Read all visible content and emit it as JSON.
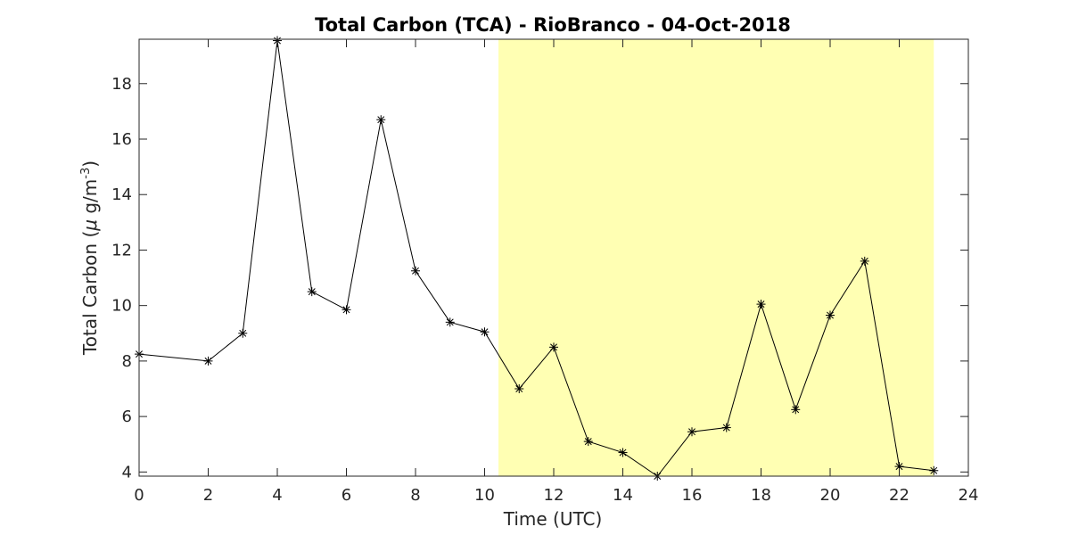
{
  "chart_data": {
    "type": "line",
    "title": "Total Carbon (TCA) - RioBranco - 04-Oct-2018",
    "xlabel": "Time (UTC)",
    "ylabel_prefix": "Total Carbon (",
    "ylabel_mu": "μ",
    "ylabel_unit": " g/m",
    "ylabel_exp": "-3",
    "ylabel_suffix": ")",
    "xlim": [
      0,
      24
    ],
    "ylim": [
      3.85,
      19.6
    ],
    "xticks": [
      0,
      2,
      4,
      6,
      8,
      10,
      12,
      14,
      16,
      18,
      20,
      22,
      24
    ],
    "yticks": [
      4,
      6,
      8,
      10,
      12,
      14,
      16,
      18
    ],
    "grid": false,
    "highlight": {
      "x_start": 10.4,
      "x_end": 23,
      "color": "#ffffb3"
    },
    "series": [
      {
        "color": "#000000",
        "marker": "asterisk",
        "x": [
          0,
          2,
          3,
          4,
          5,
          6,
          7,
          8,
          9,
          10,
          11,
          12,
          13,
          14,
          15,
          16,
          17,
          18,
          19,
          20,
          21,
          22,
          23
        ],
        "y": [
          8.25,
          8.0,
          9.0,
          19.55,
          10.5,
          9.85,
          16.7,
          11.25,
          9.4,
          9.05,
          7.0,
          8.5,
          5.1,
          4.7,
          3.85,
          5.45,
          5.6,
          10.05,
          6.25,
          9.65,
          11.6,
          4.2,
          4.05
        ]
      }
    ]
  }
}
